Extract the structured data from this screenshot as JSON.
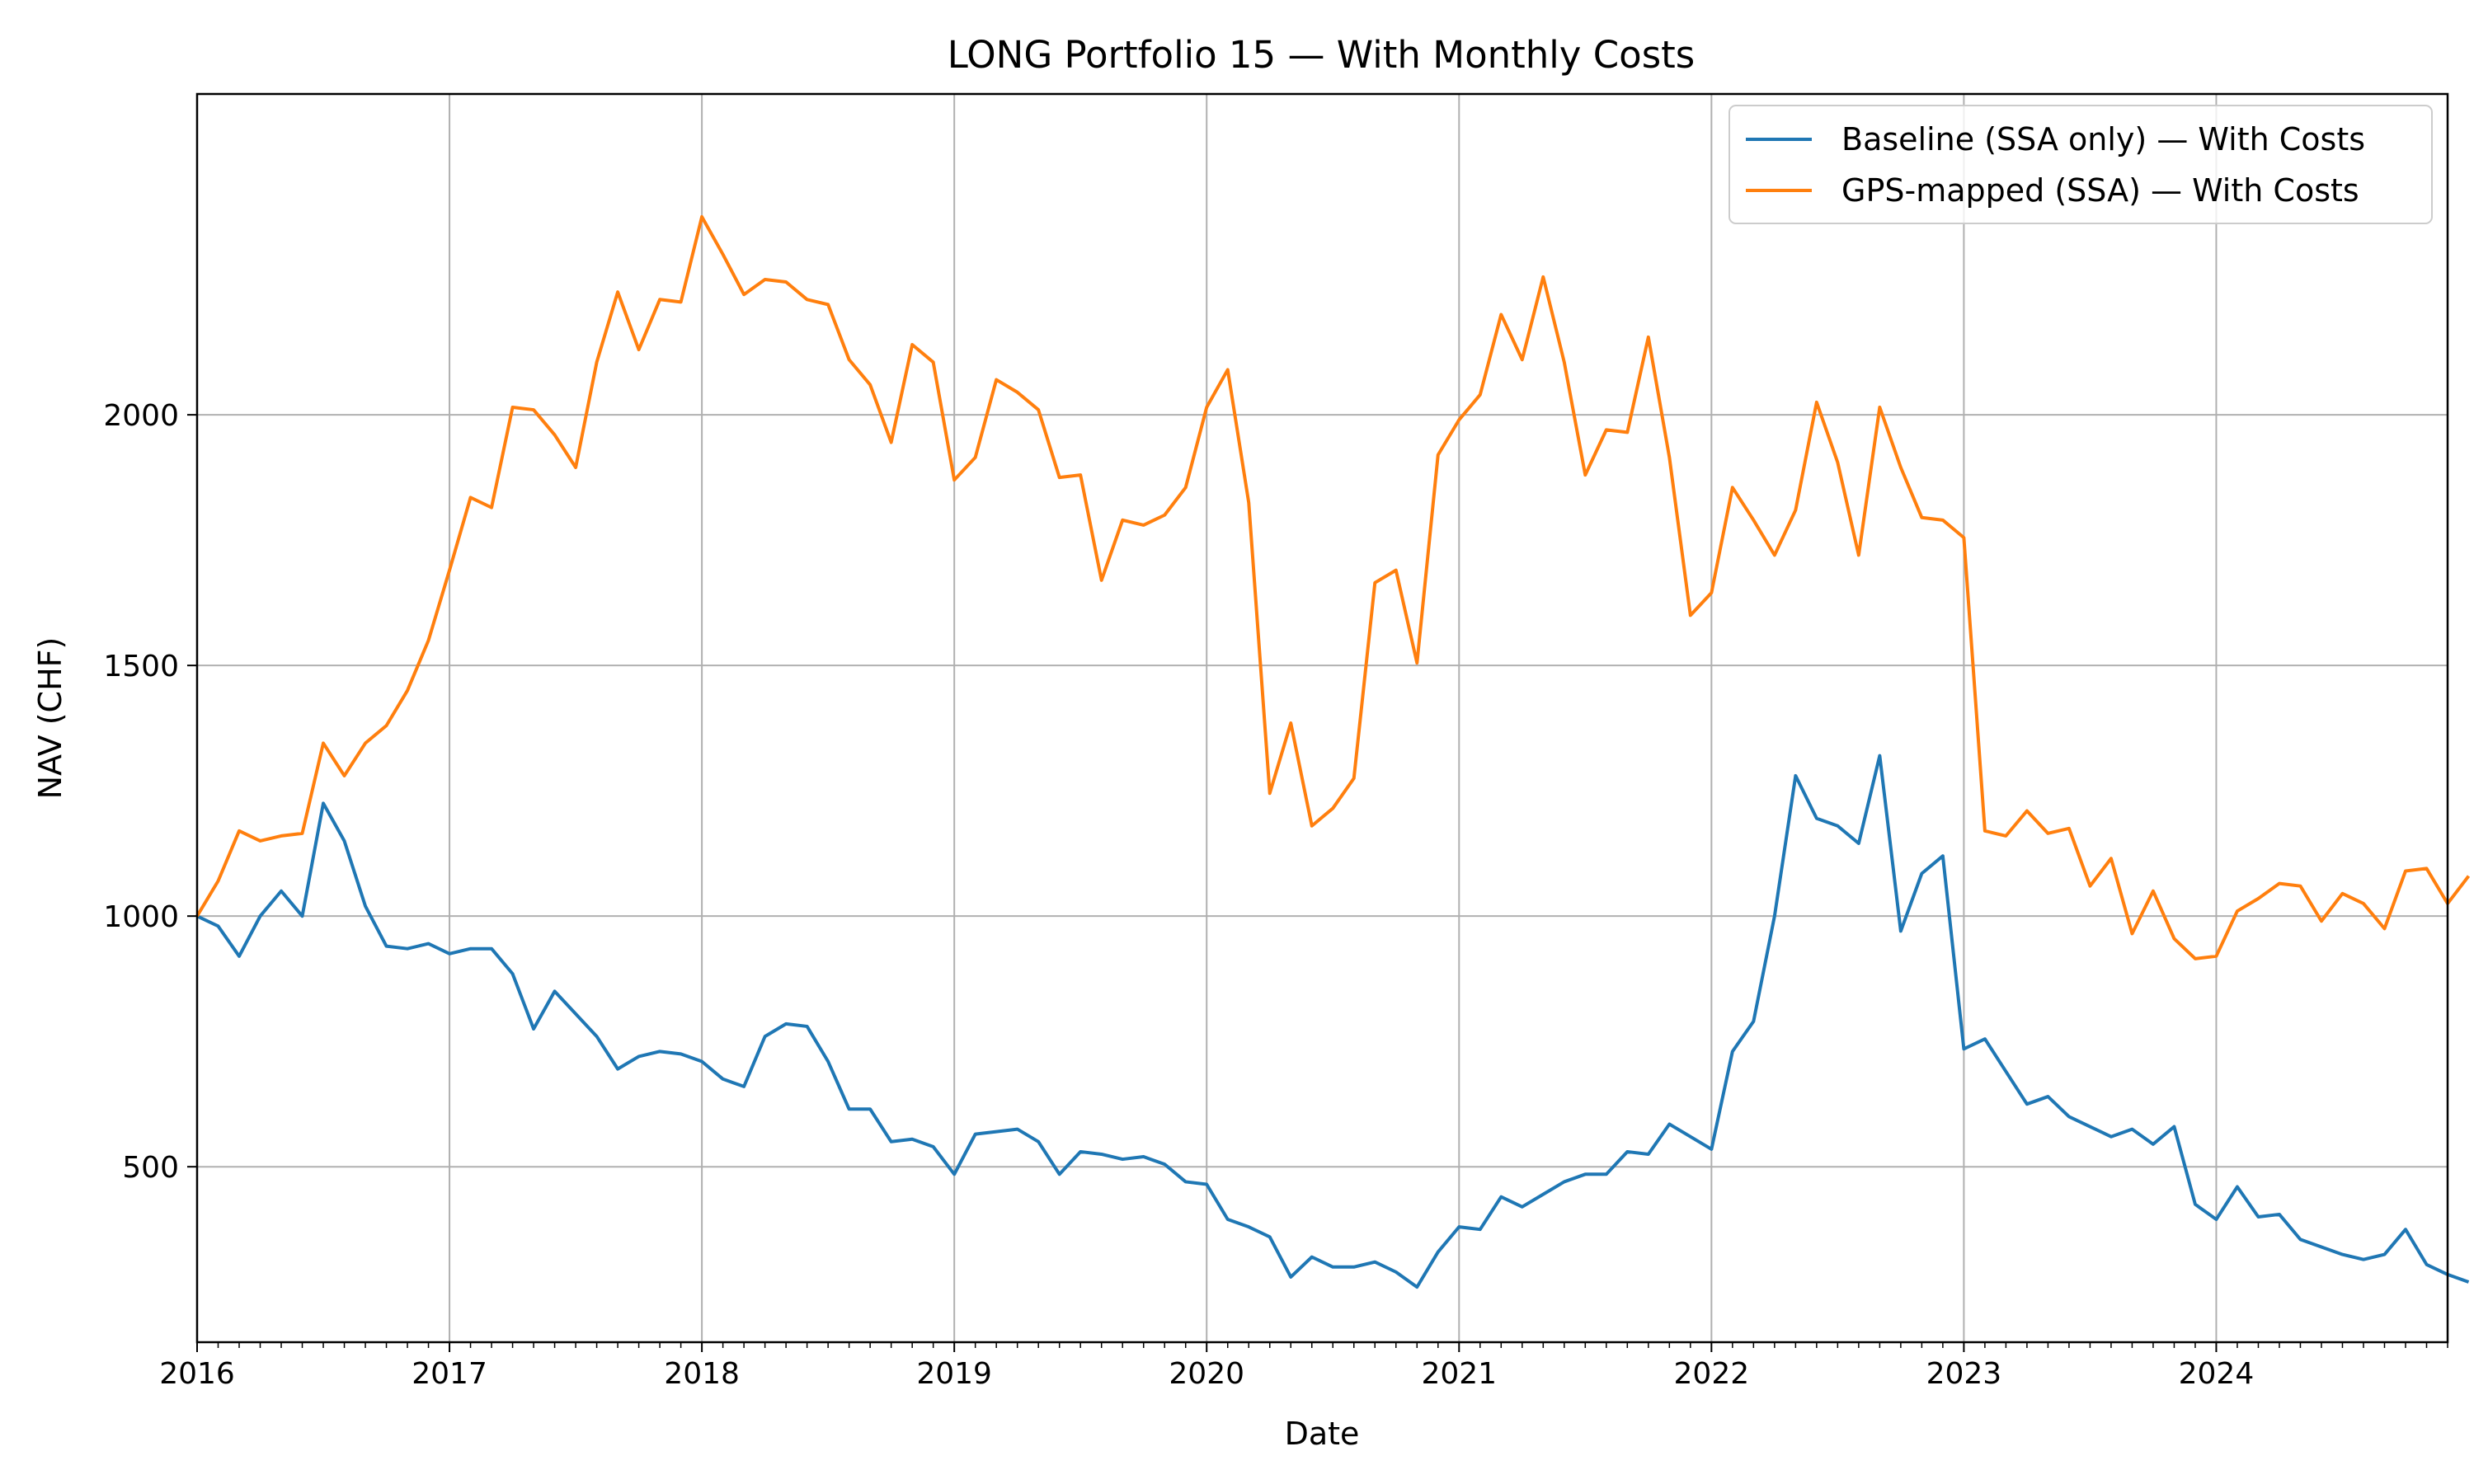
{
  "chart_data": {
    "type": "line",
    "title": "LONG Portfolio 15 — With Monthly Costs",
    "xlabel": "Date",
    "ylabel": "NAV (CHF)",
    "xlim": [
      "2016-01",
      "2024-12"
    ],
    "ylim": [
      150,
      2640
    ],
    "x_ticks": [
      "2016",
      "2017",
      "2018",
      "2019",
      "2020",
      "2021",
      "2022",
      "2023",
      "2024"
    ],
    "y_ticks": [
      500,
      1000,
      1500,
      2000
    ],
    "grid": true,
    "legend_position": "top-right",
    "x_start": "2016-01",
    "x_step": "monthly",
    "series": [
      {
        "name": "Baseline (SSA only) — With Costs",
        "color": "#1f77b4",
        "values": [
          1000,
          980,
          920,
          1000,
          1050,
          1000,
          1225,
          1150,
          1020,
          940,
          935,
          945,
          925,
          935,
          935,
          885,
          775,
          850,
          805,
          760,
          695,
          720,
          730,
          725,
          710,
          675,
          660,
          760,
          785,
          780,
          710,
          615,
          615,
          550,
          555,
          540,
          485,
          565,
          570,
          575,
          550,
          485,
          530,
          525,
          515,
          520,
          505,
          470,
          465,
          395,
          380,
          360,
          280,
          320,
          300,
          300,
          310,
          290,
          260,
          330,
          380,
          375,
          440,
          420,
          445,
          470,
          485,
          485,
          530,
          525,
          585,
          560,
          535,
          730,
          790,
          1000,
          1280,
          1195,
          1180,
          1145,
          1320,
          970,
          1085,
          1120,
          735,
          755,
          690,
          625,
          640,
          600,
          580,
          560,
          575,
          545,
          580,
          425,
          395,
          460,
          400,
          405,
          355,
          340,
          325,
          315,
          325,
          375,
          305,
          285,
          270
        ]
      },
      {
        "name": "GPS-mapped (SSA) — With Costs",
        "color": "#ff7f0e",
        "values": [
          1000,
          1070,
          1170,
          1150,
          1160,
          1165,
          1345,
          1280,
          1345,
          1380,
          1450,
          1550,
          1690,
          1835,
          1815,
          2015,
          2010,
          1960,
          1895,
          2105,
          2245,
          2130,
          2230,
          2225,
          2395,
          2320,
          2240,
          2270,
          2265,
          2230,
          2220,
          2110,
          2060,
          1945,
          2140,
          2105,
          1870,
          1915,
          2070,
          2045,
          2010,
          1875,
          1880,
          1670,
          1790,
          1780,
          1800,
          1855,
          2015,
          2090,
          1825,
          1245,
          1385,
          1180,
          1215,
          1275,
          1665,
          1690,
          1505,
          1920,
          1990,
          2040,
          2200,
          2110,
          2275,
          2105,
          1880,
          1970,
          1965,
          2155,
          1915,
          1600,
          1645,
          1855,
          1790,
          1720,
          1810,
          2025,
          1905,
          1720,
          2015,
          1895,
          1795,
          1790,
          1755,
          1170,
          1160,
          1210,
          1165,
          1175,
          1060,
          1115,
          965,
          1050,
          955,
          915,
          920,
          1010,
          1035,
          1065,
          1060,
          990,
          1045,
          1025,
          975,
          1090,
          1095,
          1025,
          1080
        ]
      }
    ]
  }
}
